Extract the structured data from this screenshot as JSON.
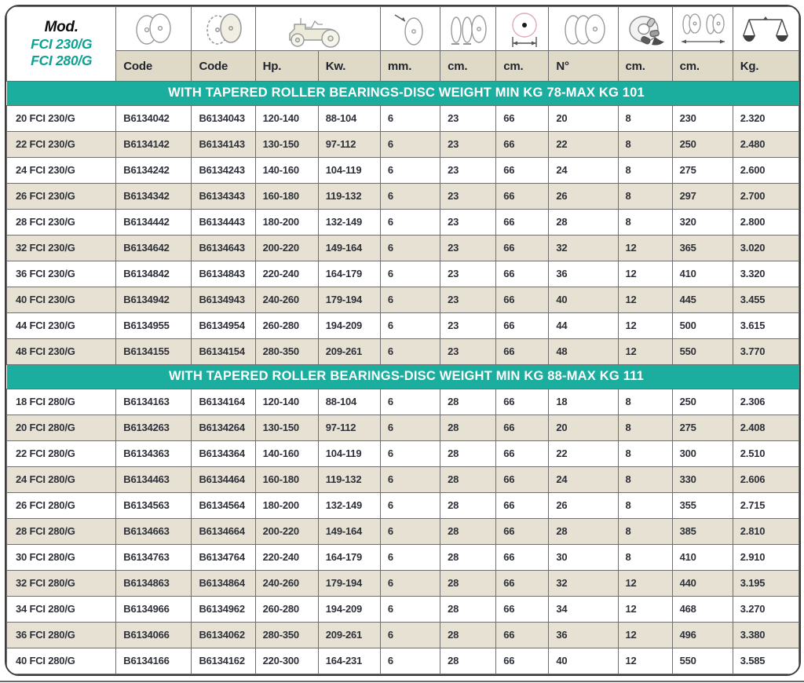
{
  "table": {
    "model_cell": {
      "title": "Mod.",
      "models": [
        "FCI 230/G",
        "FCI 280/G"
      ]
    },
    "icon_names": [
      "plain-discs-icon",
      "notched-discs-icon",
      "tractor-icon",
      "disc-thickness-icon",
      "disc-spacing-icon",
      "disc-diameter-icon",
      "disc-count-icon",
      "bearing-icon",
      "working-width-icon",
      "scale-icon"
    ],
    "unit_labels": [
      "Code",
      "Code",
      "Hp.",
      "Kw.",
      "mm.",
      "cm.",
      "cm.",
      "N°",
      "cm.",
      "cm.",
      "Kg."
    ],
    "sections": [
      {
        "title": "WITH TAPERED ROLLER BEARINGS-DISC WEIGHT MIN KG 78-MAX KG 101",
        "rows": [
          [
            "20 FCI 230/G",
            "B6134042",
            "B6134043",
            "120-140",
            "88-104",
            "6",
            "23",
            "66",
            "20",
            "8",
            "230",
            "2.320"
          ],
          [
            "22 FCI 230/G",
            "B6134142",
            "B6134143",
            "130-150",
            "97-112",
            "6",
            "23",
            "66",
            "22",
            "8",
            "250",
            "2.480"
          ],
          [
            "24 FCI 230/G",
            "B6134242",
            "B6134243",
            "140-160",
            "104-119",
            "6",
            "23",
            "66",
            "24",
            "8",
            "275",
            "2.600"
          ],
          [
            "26 FCI 230/G",
            "B6134342",
            "B6134343",
            "160-180",
            "119-132",
            "6",
            "23",
            "66",
            "26",
            "8",
            "297",
            "2.700"
          ],
          [
            "28 FCI 230/G",
            "B6134442",
            "B6134443",
            "180-200",
            "132-149",
            "6",
            "23",
            "66",
            "28",
            "8",
            "320",
            "2.800"
          ],
          [
            "32 FCI 230/G",
            "B6134642",
            "B6134643",
            "200-220",
            "149-164",
            "6",
            "23",
            "66",
            "32",
            "12",
            "365",
            "3.020"
          ],
          [
            "36 FCI 230/G",
            "B6134842",
            "B6134843",
            "220-240",
            "164-179",
            "6",
            "23",
            "66",
            "36",
            "12",
            "410",
            "3.320"
          ],
          [
            "40 FCI 230/G",
            "B6134942",
            "B6134943",
            "240-260",
            "179-194",
            "6",
            "23",
            "66",
            "40",
            "12",
            "445",
            "3.455"
          ],
          [
            "44 FCI 230/G",
            "B6134955",
            "B6134954",
            "260-280",
            "194-209",
            "6",
            "23",
            "66",
            "44",
            "12",
            "500",
            "3.615"
          ],
          [
            "48 FCI 230/G",
            "B6134155",
            "B6134154",
            "280-350",
            "209-261",
            "6",
            "23",
            "66",
            "48",
            "12",
            "550",
            "3.770"
          ]
        ]
      },
      {
        "title": "WITH TAPERED ROLLER BEARINGS-DISC WEIGHT MIN KG 88-MAX KG 111",
        "rows": [
          [
            "18 FCI 280/G",
            "B6134163",
            "B6134164",
            "120-140",
            "88-104",
            "6",
            "28",
            "66",
            "18",
            "8",
            "250",
            "2.306"
          ],
          [
            "20 FCI 280/G",
            "B6134263",
            "B6134264",
            "130-150",
            "97-112",
            "6",
            "28",
            "66",
            "20",
            "8",
            "275",
            "2.408"
          ],
          [
            "22 FCI 280/G",
            "B6134363",
            "B6134364",
            "140-160",
            "104-119",
            "6",
            "28",
            "66",
            "22",
            "8",
            "300",
            "2.510"
          ],
          [
            "24 FCI 280/G",
            "B6134463",
            "B6134464",
            "160-180",
            "119-132",
            "6",
            "28",
            "66",
            "24",
            "8",
            "330",
            "2.606"
          ],
          [
            "26 FCI 280/G",
            "B6134563",
            "B6134564",
            "180-200",
            "132-149",
            "6",
            "28",
            "66",
            "26",
            "8",
            "355",
            "2.715"
          ],
          [
            "28 FCI 280/G",
            "B6134663",
            "B6134664",
            "200-220",
            "149-164",
            "6",
            "28",
            "66",
            "28",
            "8",
            "385",
            "2.810"
          ],
          [
            "30 FCI 280/G",
            "B6134763",
            "B6134764",
            "220-240",
            "164-179",
            "6",
            "28",
            "66",
            "30",
            "8",
            "410",
            "2.910"
          ],
          [
            "32 FCI 280/G",
            "B6134863",
            "B6134864",
            "240-260",
            "179-194",
            "6",
            "28",
            "66",
            "32",
            "12",
            "440",
            "3.195"
          ],
          [
            "34 FCI 280/G",
            "B6134966",
            "B6134962",
            "260-280",
            "194-209",
            "6",
            "28",
            "66",
            "34",
            "12",
            "468",
            "3.270"
          ],
          [
            "36 FCI 280/G",
            "B6134066",
            "B6134062",
            "280-350",
            "209-261",
            "6",
            "28",
            "66",
            "36",
            "12",
            "496",
            "3.380"
          ],
          [
            "40 FCI 280/G",
            "B6134166",
            "B6134162",
            "220-300",
            "164-231",
            "6",
            "28",
            "66",
            "40",
            "12",
            "550",
            "3.585"
          ]
        ]
      }
    ],
    "colors": {
      "teal_band": "#1bae9f",
      "teal_text": "#0ea294",
      "row_beige": "#e6e1d2",
      "label_beige": "#dfd9c7",
      "text_dark": "#2e3039",
      "grid_line": "#6e6e6e"
    }
  }
}
